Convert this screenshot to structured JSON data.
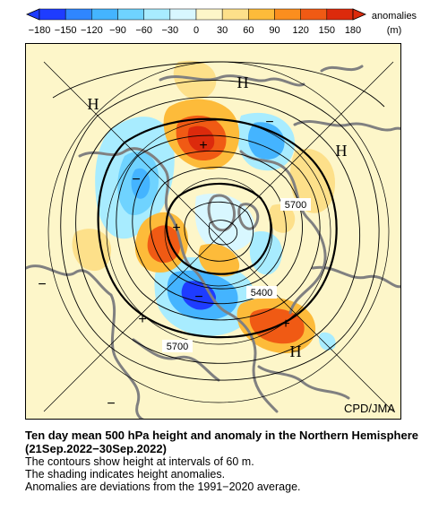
{
  "colorbar": {
    "unit_label": "anomalies",
    "unit": "(m)",
    "ticks": [
      "−180",
      "−150",
      "−120",
      "−90",
      "−60",
      "−30",
      "0",
      "30",
      "60",
      "90",
      "120",
      "150",
      "180"
    ],
    "colors": [
      "#1e3cff",
      "#2f86ff",
      "#44b4ff",
      "#6fd3ff",
      "#a8ecff",
      "#d8f7ff",
      "#fdf6c9",
      "#fde08a",
      "#fdbb3a",
      "#fb8e1e",
      "#f05a14",
      "#dc2a0c"
    ]
  },
  "map": {
    "contour_labels": [
      "5700",
      "5400",
      "5700"
    ],
    "pressure_labels": [
      "H",
      "H",
      "H",
      "H"
    ],
    "anomaly_signs": [
      "+",
      "+",
      "+",
      "+",
      "−",
      "−",
      "−",
      "−",
      "−"
    ],
    "credit": "CPD/JMA"
  },
  "caption": {
    "title": "Ten day mean 500 hPa height and anomaly in the Northern Hemisphere (21Sep.2022−30Sep.2022)",
    "line1": "The contours show height at intervals of 60 m.",
    "line2": "The shading indicates height anomalies.",
    "line3": "Anomalies are deviations from the 1991−2020 average."
  }
}
